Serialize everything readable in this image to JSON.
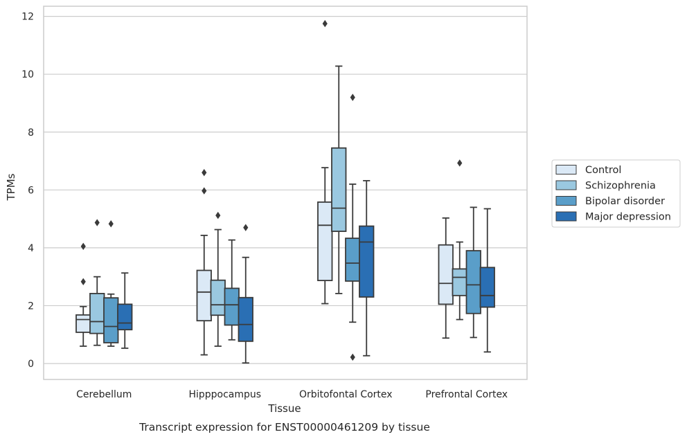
{
  "caption": "Transcript expression for ENST00000461209 by tissue",
  "chart_data": {
    "type": "boxplot",
    "title": "",
    "xlabel": "Tissue",
    "ylabel": "TPMs",
    "ylim": [
      -0.55,
      12.35
    ],
    "yticks": [
      0,
      2,
      4,
      6,
      8,
      10,
      12
    ],
    "grid": true,
    "legend_position": "right",
    "categories": [
      "Cerebellum",
      "Hipppocampus",
      "Orbitofontal Cortex",
      "Prefrontal Cortex"
    ],
    "series": [
      {
        "name": "Control",
        "color": "#dbe9f6",
        "boxes": [
          {
            "whisker_low": 0.6,
            "q1": 1.08,
            "median": 1.52,
            "q3": 1.68,
            "whisker_high": 1.97,
            "outliers": [
              4.05,
              2.83
            ]
          },
          {
            "whisker_low": 0.3,
            "q1": 1.48,
            "median": 2.47,
            "q3": 3.22,
            "whisker_high": 4.43,
            "outliers": [
              6.6,
              5.97
            ]
          },
          {
            "whisker_low": 2.07,
            "q1": 2.87,
            "median": 4.78,
            "q3": 5.58,
            "whisker_high": 6.77,
            "outliers": [
              11.75
            ]
          },
          {
            "whisker_low": 0.88,
            "q1": 2.05,
            "median": 2.77,
            "q3": 4.1,
            "whisker_high": 5.03,
            "outliers": []
          }
        ]
      },
      {
        "name": "Schizophrenia",
        "color": "#9ac8e0",
        "boxes": [
          {
            "whisker_low": 0.63,
            "q1": 1.04,
            "median": 1.45,
            "q3": 2.42,
            "whisker_high": 3.0,
            "outliers": [
              4.87
            ]
          },
          {
            "whisker_low": 0.6,
            "q1": 1.67,
            "median": 2.03,
            "q3": 2.88,
            "whisker_high": 4.63,
            "outliers": [
              5.12
            ]
          },
          {
            "whisker_low": 2.42,
            "q1": 4.57,
            "median": 5.37,
            "q3": 7.45,
            "whisker_high": 10.28,
            "outliers": []
          },
          {
            "whisker_low": 1.52,
            "q1": 2.35,
            "median": 2.98,
            "q3": 3.27,
            "whisker_high": 4.2,
            "outliers": [
              6.93
            ]
          }
        ]
      },
      {
        "name": "Bipolar disorder",
        "color": "#5a9ec9",
        "boxes": [
          {
            "whisker_low": 0.6,
            "q1": 0.72,
            "median": 1.28,
            "q3": 2.27,
            "whisker_high": 2.4,
            "outliers": [
              4.83
            ]
          },
          {
            "whisker_low": 0.82,
            "q1": 1.33,
            "median": 2.03,
            "q3": 2.6,
            "whisker_high": 4.27,
            "outliers": []
          },
          {
            "whisker_low": 1.43,
            "q1": 2.85,
            "median": 3.47,
            "q3": 4.33,
            "whisker_high": 6.2,
            "outliers": [
              9.2,
              0.22
            ]
          },
          {
            "whisker_low": 0.9,
            "q1": 1.73,
            "median": 2.72,
            "q3": 3.9,
            "whisker_high": 5.4,
            "outliers": []
          }
        ]
      },
      {
        "name": "Major depression",
        "color": "#2a6fb4",
        "boxes": [
          {
            "whisker_low": 0.53,
            "q1": 1.17,
            "median": 1.4,
            "q3": 2.05,
            "whisker_high": 3.13,
            "outliers": []
          },
          {
            "whisker_low": 0.02,
            "q1": 0.77,
            "median": 1.35,
            "q3": 2.28,
            "whisker_high": 3.67,
            "outliers": [
              4.7
            ]
          },
          {
            "whisker_low": 0.27,
            "q1": 2.3,
            "median": 4.2,
            "q3": 4.75,
            "whisker_high": 6.32,
            "outliers": []
          },
          {
            "whisker_low": 0.4,
            "q1": 1.95,
            "median": 2.35,
            "q3": 3.32,
            "whisker_high": 5.35,
            "outliers": []
          }
        ]
      }
    ]
  },
  "colors": {
    "grid": "#cccccc",
    "frame": "#cccccc",
    "box_edge": "#3a3a3a",
    "text": "#262626"
  }
}
